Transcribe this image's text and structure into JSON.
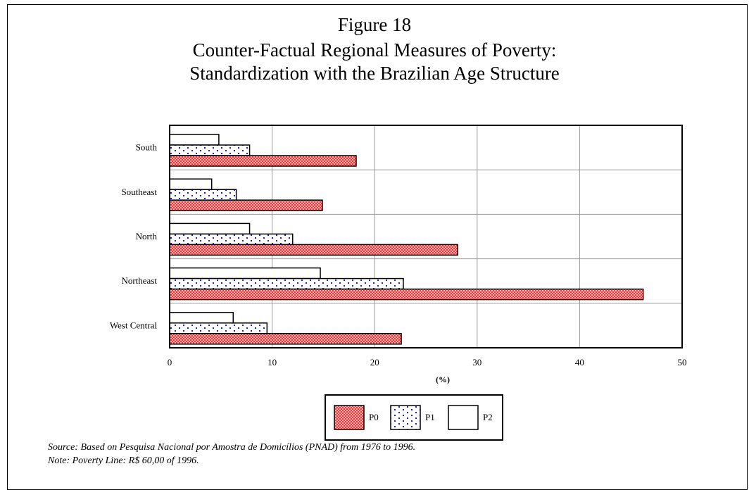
{
  "figure": {
    "label": "Figure 18",
    "title_line1": "Counter-Factual Regional Measures of Poverty:",
    "title_line2": "Standardization with the Brazilian Age Structure"
  },
  "chart_data": {
    "type": "bar",
    "orientation": "horizontal",
    "title": "Figure 18 Counter-Factual Regional Measures of Poverty: Standardization with the Brazilian Age Structure",
    "xlabel": "(%)",
    "ylabel": "",
    "xlim": [
      0,
      50
    ],
    "xticks": [
      0,
      10,
      20,
      30,
      40,
      50
    ],
    "grid": true,
    "legend_position": "bottom",
    "categories": [
      "South",
      "Southeast",
      "North",
      "Northeast",
      "West Central"
    ],
    "series": [
      {
        "name": "P0",
        "values": [
          18.2,
          14.9,
          28.1,
          46.2,
          22.6
        ],
        "color": "#ff5c5c",
        "pattern": "red-crosshatch"
      },
      {
        "name": "P1",
        "values": [
          7.8,
          6.5,
          12.0,
          22.8,
          9.5
        ],
        "color": "#2222dd",
        "pattern": "blue-dots"
      },
      {
        "name": "P2",
        "values": [
          4.8,
          4.1,
          7.8,
          14.7,
          6.2
        ],
        "color": "#ffffff",
        "pattern": "plain-white"
      }
    ]
  },
  "footer": {
    "source": "Source: Based on Pesquisa Nacional por Amostra de Domicílios (PNAD) from 1976 to 1996.",
    "note": "Note: Poverty Line:  R$ 60,00 of 1996."
  }
}
